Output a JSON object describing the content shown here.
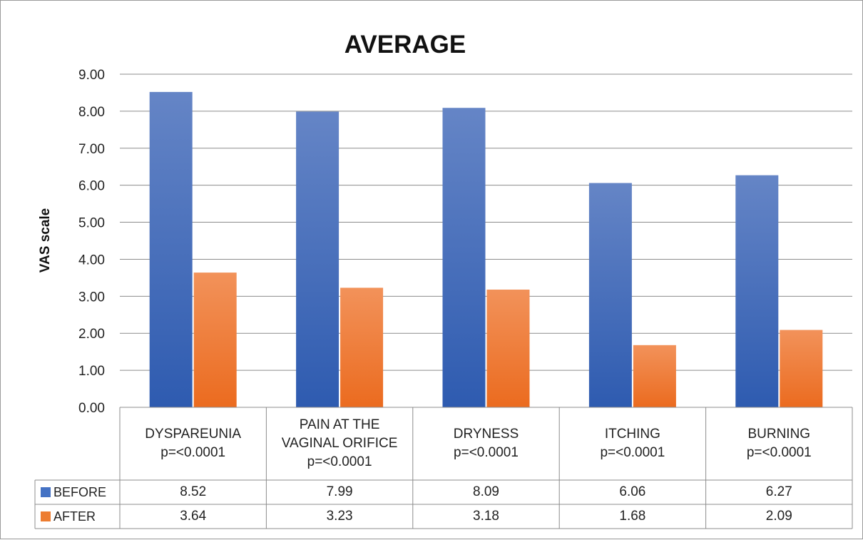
{
  "chart_data": {
    "type": "bar",
    "title": "AVERAGE",
    "ylabel": "VAS scale",
    "xlabel": "",
    "ylim": [
      0,
      9
    ],
    "yticks": [
      "0.00",
      "1.00",
      "2.00",
      "3.00",
      "4.00",
      "5.00",
      "6.00",
      "7.00",
      "8.00",
      "9.00"
    ],
    "grid": true,
    "legend_placement": "data-table",
    "categories": [
      "DYSPAREUNIA\np=<0.0001",
      "PAIN AT THE\nVAGINAL ORIFICE\np=<0.0001",
      "DRYNESS\np=<0.0001",
      "ITCHING\np=<0.0001",
      "BURNING\np=<0.0001"
    ],
    "series": [
      {
        "name": "BEFORE",
        "color": "#4472c4",
        "values": [
          8.52,
          7.99,
          8.09,
          6.06,
          6.27
        ],
        "labels": [
          "8.52",
          "7.99",
          "8.09",
          "6.06",
          "6.27"
        ]
      },
      {
        "name": "AFTER",
        "color": "#ed7d31",
        "values": [
          3.64,
          3.23,
          3.18,
          1.68,
          2.09
        ],
        "labels": [
          "3.64",
          "3.23",
          "3.18",
          "1.68",
          "2.09"
        ]
      }
    ]
  }
}
